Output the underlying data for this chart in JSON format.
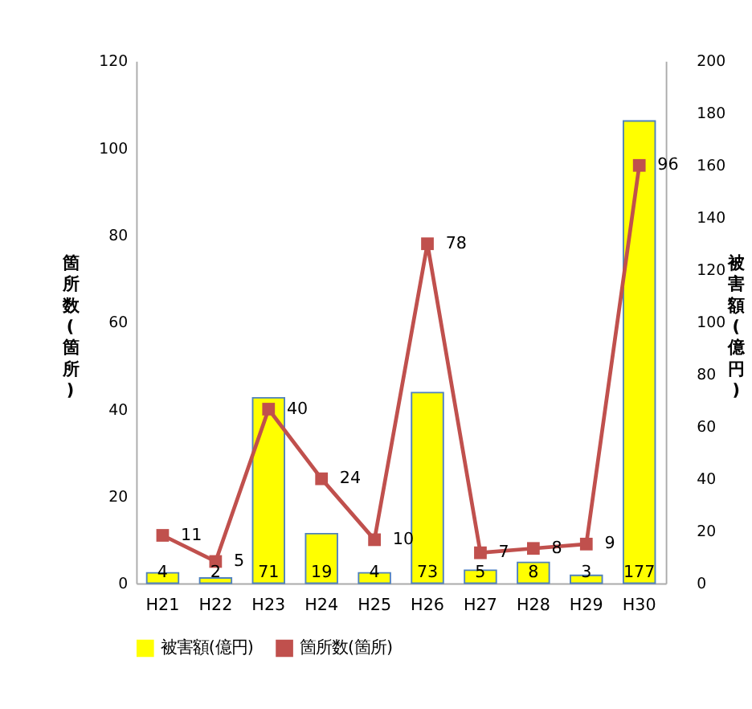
{
  "chart_data": {
    "type": "bar",
    "categories": [
      "H21",
      "H22",
      "H23",
      "H24",
      "H25",
      "H26",
      "H27",
      "H28",
      "H29",
      "H30"
    ],
    "series": [
      {
        "name": "被害額(億円)",
        "type": "bar",
        "axis": "y2",
        "color": "#ffff00",
        "values": [
          4,
          2,
          71,
          19,
          4,
          73,
          5,
          8,
          3,
          177
        ]
      },
      {
        "name": "箇所数(箇所)",
        "type": "line",
        "color": "#c0504d",
        "values": [
          11,
          5,
          40,
          24,
          10,
          78,
          7,
          8,
          9,
          96
        ]
      }
    ],
    "ylabel": "箇所数(箇所)",
    "y2label": "被害額(億円)",
    "ylim": [
      0,
      120
    ],
    "yticks": [
      0,
      20,
      40,
      60,
      80,
      100,
      120
    ],
    "y2lim": [
      0,
      200
    ],
    "y2ticks": [
      0,
      20,
      40,
      60,
      80,
      100,
      120,
      140,
      160,
      180,
      200
    ],
    "data_labels": true,
    "grid": false,
    "legend": "bottom",
    "marker": "square"
  }
}
